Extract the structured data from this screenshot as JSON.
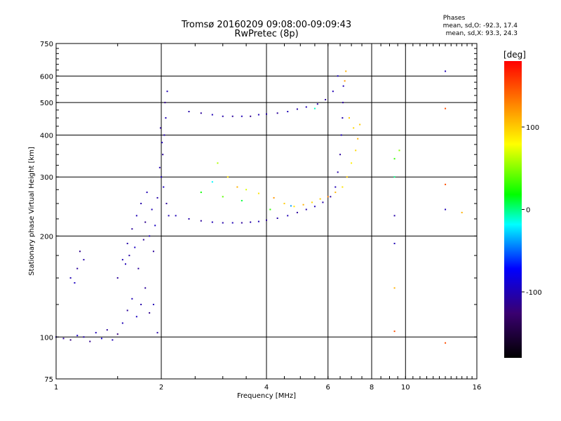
{
  "title": "Tromsø 20160209 09:08:00-09:09:43",
  "subtitle": "RwPretec (8p)",
  "stats": {
    "heading": "Phases",
    "o_line": "mean, sd,O:  -92.3, 17.4",
    "x_line": "mean, sd,X:  93.3, 24.3"
  },
  "colorbar": {
    "label": "[deg]",
    "ticks": [
      {
        "v": 100,
        "label": "100"
      },
      {
        "v": 0,
        "label": "0"
      },
      {
        "v": -100,
        "label": "-100"
      }
    ],
    "range": [
      -180,
      180
    ]
  },
  "chart_data": {
    "type": "scatter",
    "xlabel": "Frequency [MHz]",
    "ylabel": "Stationary phase Virtual Height [km]",
    "x_scale": "log",
    "y_scale": "log",
    "xlim": [
      1,
      16
    ],
    "ylim": [
      75,
      750
    ],
    "x_ticks": [
      {
        "v": 1,
        "label": "1"
      },
      {
        "v": 2,
        "label": "2"
      },
      {
        "v": 4,
        "label": "4"
      },
      {
        "v": 6,
        "label": "6"
      },
      {
        "v": 8,
        "label": "8"
      },
      {
        "v": 10,
        "label": "10"
      },
      {
        "v": 16,
        "label": "16"
      }
    ],
    "y_ticks": [
      {
        "v": 75,
        "label": "75"
      },
      {
        "v": 100,
        "label": "100"
      },
      {
        "v": 200,
        "label": "200"
      },
      {
        "v": 300,
        "label": "300"
      },
      {
        "v": 400,
        "label": "400"
      },
      {
        "v": 500,
        "label": "500"
      },
      {
        "v": 600,
        "label": "600"
      },
      {
        "v": 750,
        "label": "750"
      }
    ],
    "grid": true,
    "series": [
      {
        "points": [
          [
            1.0,
            100,
            -100
          ],
          [
            1.05,
            99,
            -110
          ],
          [
            1.1,
            98,
            -120
          ],
          [
            1.15,
            101,
            -95
          ],
          [
            1.2,
            100,
            -105
          ],
          [
            1.25,
            97,
            -115
          ],
          [
            1.3,
            103,
            -100
          ],
          [
            1.35,
            99,
            -90
          ],
          [
            1.4,
            105,
            -110
          ],
          [
            1.45,
            98,
            -100
          ],
          [
            1.5,
            102,
            -120
          ],
          [
            1.55,
            110,
            -100
          ],
          [
            1.6,
            120,
            -110
          ],
          [
            1.65,
            130,
            -100
          ],
          [
            1.7,
            115,
            -95
          ],
          [
            1.75,
            125,
            -105
          ],
          [
            1.8,
            140,
            -110
          ],
          [
            1.85,
            118,
            -115
          ],
          [
            1.9,
            125,
            -100
          ],
          [
            1.95,
            103,
            -105
          ],
          [
            1.1,
            150,
            -100
          ],
          [
            1.15,
            160,
            -110
          ],
          [
            1.2,
            170,
            -105
          ],
          [
            1.13,
            145,
            -95
          ],
          [
            1.17,
            180,
            -115
          ],
          [
            1.5,
            150,
            -110
          ],
          [
            1.55,
            170,
            -100
          ],
          [
            1.6,
            190,
            -105
          ],
          [
            1.65,
            210,
            -110
          ],
          [
            1.7,
            230,
            -100
          ],
          [
            1.75,
            250,
            -105
          ],
          [
            1.8,
            220,
            -115
          ],
          [
            1.85,
            200,
            -100
          ],
          [
            1.9,
            180,
            -110
          ],
          [
            1.95,
            260,
            -105
          ],
          [
            1.58,
            165,
            -100
          ],
          [
            1.68,
            185,
            -95
          ],
          [
            1.78,
            195,
            -110
          ],
          [
            1.88,
            240,
            -100
          ],
          [
            1.72,
            160,
            -110
          ],
          [
            1.62,
            175,
            -105
          ],
          [
            1.82,
            270,
            -100
          ],
          [
            1.92,
            215,
            -95
          ],
          [
            2.0,
            300,
            -100
          ],
          [
            2.02,
            350,
            -110
          ],
          [
            2.04,
            400,
            -105
          ],
          [
            2.06,
            450,
            -100
          ],
          [
            2.05,
            500,
            -115
          ],
          [
            2.08,
            540,
            -100
          ],
          [
            1.98,
            320,
            -105
          ],
          [
            2.03,
            280,
            -95
          ],
          [
            2.07,
            250,
            -110
          ],
          [
            2.1,
            230,
            -100
          ],
          [
            1.99,
            420,
            -110
          ],
          [
            2.01,
            380,
            -100
          ],
          [
            2.4,
            470,
            -105
          ],
          [
            2.6,
            465,
            -110
          ],
          [
            2.8,
            460,
            -100
          ],
          [
            3.0,
            455,
            -105
          ],
          [
            3.2,
            455,
            -110
          ],
          [
            3.4,
            455,
            -100
          ],
          [
            3.6,
            455,
            -115
          ],
          [
            3.8,
            460,
            -100
          ],
          [
            4.0,
            462,
            -105
          ],
          [
            4.3,
            465,
            -110
          ],
          [
            4.6,
            470,
            -100
          ],
          [
            4.9,
            478,
            -105
          ],
          [
            5.2,
            485,
            -100
          ],
          [
            5.6,
            495,
            -105
          ],
          [
            5.9,
            510,
            -110
          ],
          [
            6.2,
            540,
            -100
          ],
          [
            6.4,
            600,
            -95
          ],
          [
            2.2,
            230,
            -100
          ],
          [
            2.4,
            225,
            -105
          ],
          [
            2.6,
            222,
            -110
          ],
          [
            2.8,
            220,
            -100
          ],
          [
            3.0,
            219,
            -105
          ],
          [
            3.2,
            219,
            -100
          ],
          [
            3.4,
            219,
            -110
          ],
          [
            3.6,
            220,
            -105
          ],
          [
            3.8,
            221,
            -100
          ],
          [
            4.0,
            223,
            -110
          ],
          [
            4.3,
            226,
            -105
          ],
          [
            4.6,
            230,
            -100
          ],
          [
            4.9,
            235,
            -110
          ],
          [
            5.2,
            240,
            -105
          ],
          [
            5.5,
            245,
            -100
          ],
          [
            5.8,
            252,
            -105
          ],
          [
            6.1,
            262,
            -110
          ],
          [
            6.3,
            280,
            -100
          ],
          [
            6.4,
            310,
            -105
          ],
          [
            6.5,
            350,
            -110
          ],
          [
            6.55,
            400,
            -100
          ],
          [
            6.6,
            450,
            -105
          ],
          [
            6.62,
            500,
            -110
          ],
          [
            6.64,
            560,
            -100
          ],
          [
            9.3,
            190,
            -100
          ],
          [
            9.3,
            230,
            -105
          ],
          [
            13.0,
            240,
            -100
          ],
          [
            13.0,
            620,
            -100
          ]
        ]
      },
      {
        "points": [
          [
            2.9,
            330,
            60
          ],
          [
            3.1,
            300,
            90
          ],
          [
            3.3,
            280,
            110
          ],
          [
            3.5,
            275,
            70
          ],
          [
            3.8,
            268,
            90
          ],
          [
            4.2,
            260,
            120
          ],
          [
            4.5,
            250,
            100
          ],
          [
            4.8,
            245,
            90
          ],
          [
            5.1,
            248,
            110
          ],
          [
            5.4,
            252,
            95
          ],
          [
            5.7,
            258,
            100
          ],
          [
            6.0,
            262,
            130
          ],
          [
            6.3,
            270,
            110
          ],
          [
            6.6,
            280,
            90
          ],
          [
            6.8,
            300,
            100
          ],
          [
            7.0,
            330,
            85
          ],
          [
            7.2,
            360,
            95
          ],
          [
            7.3,
            390,
            110
          ],
          [
            7.4,
            430,
            100
          ],
          [
            6.7,
            580,
            120
          ],
          [
            6.75,
            620,
            110
          ],
          [
            6.9,
            450,
            100
          ],
          [
            7.1,
            420,
            95
          ],
          [
            9.3,
            140,
            110
          ],
          [
            9.3,
            104,
            150
          ],
          [
            13.0,
            480,
            150
          ],
          [
            13.0,
            96,
            150
          ],
          [
            13.0,
            285,
            150
          ],
          [
            14.5,
            235,
            110
          ],
          [
            2.6,
            270,
            20
          ],
          [
            2.8,
            290,
            -20
          ],
          [
            3.0,
            262,
            40
          ],
          [
            3.4,
            255,
            10
          ],
          [
            4.1,
            240,
            30
          ],
          [
            4.7,
            246,
            -40
          ],
          [
            5.5,
            480,
            -10
          ],
          [
            9.3,
            300,
            0
          ],
          [
            9.3,
            340,
            30
          ],
          [
            9.6,
            360,
            50
          ]
        ]
      }
    ]
  }
}
